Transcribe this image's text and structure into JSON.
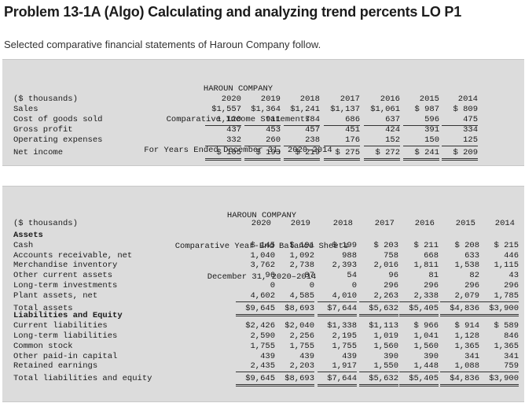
{
  "title": "Problem 13-1A (Algo) Calculating and analyzing trend percents LO P1",
  "intro": "Selected comparative financial statements of Haroun Company follow.",
  "income_statement": {
    "heading": [
      "HAROUN COMPANY",
      "Comparative Income Statements",
      "For Years Ended December 31, 2020–2014"
    ],
    "units_label": "($ thousands)",
    "years": [
      "2020",
      "2019",
      "2018",
      "2017",
      "2016",
      "2015",
      "2014"
    ],
    "rows": [
      {
        "label": "Sales",
        "values": [
          "$1,557",
          "$1,364",
          "$1,241",
          "$1,137",
          "$1,061",
          "$ 987",
          "$ 809"
        ],
        "line": ""
      },
      {
        "label": "Cost of goods sold",
        "values": [
          "1,120",
          "911",
          "784",
          "686",
          "637",
          "596",
          "475"
        ],
        "line": "single"
      },
      {
        "label": "Gross profit",
        "values": [
          "437",
          "453",
          "457",
          "451",
          "424",
          "391",
          "334"
        ],
        "line": ""
      },
      {
        "label": "Operating expenses",
        "values": [
          "332",
          "260",
          "238",
          "176",
          "152",
          "150",
          "125"
        ],
        "line": "single"
      },
      {
        "label": "Net income",
        "values": [
          "$ 105",
          "$ 193",
          "$ 219",
          "$ 275",
          "$ 272",
          "$ 241",
          "$ 209"
        ],
        "line": "double"
      }
    ]
  },
  "balance_sheet": {
    "heading": [
      "HAROUN COMPANY",
      "Comparative Year-End Balance Sheets",
      "December 31, 2020–2014"
    ],
    "units_label": "($ thousands)",
    "years": [
      "2020",
      "2019",
      "2018",
      "2017",
      "2016",
      "2015",
      "2014"
    ],
    "rows": [
      {
        "label": "Assets",
        "bold": true,
        "values": [],
        "line": ""
      },
      {
        "label": "Cash",
        "values": [
          "$ 145",
          "$ 191",
          "$ 199",
          "$ 203",
          "$ 211",
          "$ 208",
          "$ 215"
        ],
        "line": ""
      },
      {
        "label": "Accounts receivable, net",
        "values": [
          "1,040",
          "1,092",
          "988",
          "758",
          "668",
          "633",
          "446"
        ],
        "line": ""
      },
      {
        "label": "Merchandise inventory",
        "values": [
          "3,762",
          "2,738",
          "2,393",
          "2,016",
          "1,811",
          "1,538",
          "1,115"
        ],
        "line": ""
      },
      {
        "label": "Other current assets",
        "values": [
          "96",
          "87",
          "54",
          "96",
          "81",
          "82",
          "43"
        ],
        "line": ""
      },
      {
        "label": "Long-term investments",
        "values": [
          "0",
          "0",
          "0",
          "296",
          "296",
          "296",
          "296"
        ],
        "line": ""
      },
      {
        "label": "Plant assets, net",
        "values": [
          "4,602",
          "4,585",
          "4,010",
          "2,263",
          "2,338",
          "2,079",
          "1,785"
        ],
        "line": "single"
      },
      {
        "label": "Total assets",
        "values": [
          "$9,645",
          "$8,693",
          "$7,644",
          "$5,632",
          "$5,405",
          "$4,836",
          "$3,900"
        ],
        "line": "double"
      },
      {
        "label": "Liabilities and Equity",
        "bold": true,
        "values": [],
        "line": ""
      },
      {
        "label": "Current liabilities",
        "values": [
          "$2,426",
          "$2,040",
          "$1,338",
          "$1,113",
          "$ 966",
          "$ 914",
          "$ 589"
        ],
        "line": ""
      },
      {
        "label": "Long-term liabilities",
        "values": [
          "2,590",
          "2,256",
          "2,195",
          "1,019",
          "1,041",
          "1,128",
          "846"
        ],
        "line": ""
      },
      {
        "label": "Common stock",
        "values": [
          "1,755",
          "1,755",
          "1,755",
          "1,560",
          "1,560",
          "1,365",
          "1,365"
        ],
        "line": ""
      },
      {
        "label": "Other paid-in capital",
        "values": [
          "439",
          "439",
          "439",
          "390",
          "390",
          "341",
          "341"
        ],
        "line": ""
      },
      {
        "label": "Retained earnings",
        "values": [
          "2,435",
          "2,203",
          "1,917",
          "1,550",
          "1,448",
          "1,088",
          "759"
        ],
        "line": "single"
      },
      {
        "label": "Total liabilities and equity",
        "values": [
          "$9,645",
          "$8,693",
          "$7,644",
          "$5,632",
          "$5,405",
          "$4,836",
          "$3,900"
        ],
        "line": "double"
      }
    ]
  }
}
